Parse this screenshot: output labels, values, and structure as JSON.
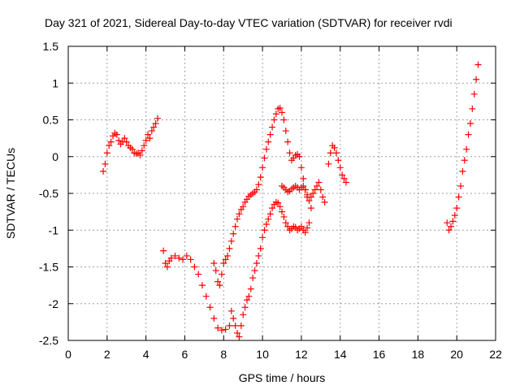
{
  "chart_data": {
    "type": "scatter",
    "title": "Day 321 of 2021, Sidereal Day-to-day VTEC variation (SDTVAR) for receiver rvdi",
    "xlabel": "GPS time / hours",
    "ylabel": "SDTVAR / TECUs",
    "xlim": [
      0,
      22
    ],
    "ylim": [
      -2.5,
      1.5
    ],
    "x_ticks": [
      "0",
      "2",
      "4",
      "6",
      "8",
      "10",
      "12",
      "14",
      "16",
      "18",
      "20",
      "22"
    ],
    "y_ticks": [
      "1.5",
      "1",
      "0.5",
      "0",
      "-0.5",
      "-1",
      "-1.5",
      "-2",
      "-2.5"
    ],
    "grid": true,
    "marker": "+",
    "color": "#ff0000",
    "series": [
      {
        "points": [
          [
            1.8,
            -0.2
          ],
          [
            1.9,
            -0.1
          ],
          [
            2.0,
            0.05
          ],
          [
            2.1,
            0.15
          ],
          [
            2.2,
            0.2
          ],
          [
            2.3,
            0.28
          ],
          [
            2.4,
            0.32
          ],
          [
            2.5,
            0.3
          ],
          [
            2.6,
            0.22
          ],
          [
            2.7,
            0.17
          ],
          [
            2.8,
            0.2
          ],
          [
            2.9,
            0.25
          ],
          [
            3.0,
            0.2
          ],
          [
            3.1,
            0.15
          ],
          [
            3.2,
            0.12
          ],
          [
            3.3,
            0.1
          ],
          [
            3.4,
            0.05
          ],
          [
            3.5,
            0.04
          ],
          [
            3.6,
            0.05
          ],
          [
            3.7,
            0.02
          ],
          [
            3.8,
            0.08
          ],
          [
            3.9,
            0.15
          ],
          [
            4.0,
            0.22
          ],
          [
            4.1,
            0.3
          ],
          [
            4.2,
            0.25
          ],
          [
            4.3,
            0.35
          ],
          [
            4.4,
            0.4
          ],
          [
            4.5,
            0.45
          ],
          [
            4.6,
            0.52
          ]
        ]
      },
      {
        "points": [
          [
            4.9,
            -1.28
          ],
          [
            5.0,
            -1.45
          ],
          [
            5.1,
            -1.5
          ],
          [
            5.2,
            -1.42
          ],
          [
            5.3,
            -1.38
          ],
          [
            5.5,
            -1.35
          ],
          [
            5.7,
            -1.38
          ],
          [
            5.9,
            -1.4
          ],
          [
            6.1,
            -1.35
          ],
          [
            6.3,
            -1.4
          ],
          [
            6.5,
            -1.5
          ],
          [
            6.7,
            -1.6
          ],
          [
            6.9,
            -1.75
          ],
          [
            7.1,
            -1.9
          ],
          [
            7.3,
            -2.05
          ],
          [
            7.5,
            -2.2
          ],
          [
            7.7,
            -2.33
          ],
          [
            7.9,
            -2.36
          ],
          [
            8.1,
            -2.35
          ],
          [
            8.3,
            -2.3
          ],
          [
            8.4,
            -2.1
          ],
          [
            8.5,
            -2.2
          ],
          [
            8.6,
            -2.3
          ],
          [
            8.7,
            -2.4
          ],
          [
            8.8,
            -2.45
          ],
          [
            8.9,
            -2.3
          ],
          [
            9.0,
            -2.15
          ],
          [
            9.1,
            -2.05
          ],
          [
            9.2,
            -1.95
          ],
          [
            9.3,
            -1.9
          ],
          [
            9.4,
            -1.8
          ],
          [
            9.5,
            -1.65
          ],
          [
            9.6,
            -1.55
          ],
          [
            9.7,
            -1.45
          ],
          [
            9.8,
            -1.35
          ],
          [
            9.9,
            -1.25
          ],
          [
            10.0,
            -1.1
          ],
          [
            10.1,
            -1.0
          ],
          [
            10.2,
            -0.92
          ],
          [
            10.3,
            -0.85
          ],
          [
            10.4,
            -0.78
          ],
          [
            10.5,
            -0.7
          ],
          [
            10.6,
            -0.65
          ],
          [
            10.7,
            -0.62
          ],
          [
            10.8,
            -0.63
          ],
          [
            10.9,
            -0.68
          ],
          [
            11.0,
            -0.75
          ],
          [
            11.1,
            -0.82
          ],
          [
            11.2,
            -0.9
          ],
          [
            11.3,
            -0.95
          ],
          [
            11.4,
            -1.0
          ],
          [
            11.5,
            -0.98
          ],
          [
            11.6,
            -0.95
          ],
          [
            11.7,
            -0.96
          ],
          [
            11.8,
            -1.0
          ],
          [
            11.9,
            -0.98
          ],
          [
            12.0,
            -0.95
          ],
          [
            12.1,
            -1.0
          ],
          [
            12.2,
            -1.03
          ],
          [
            12.3,
            -0.97
          ],
          [
            12.4,
            -0.9
          ],
          [
            12.5,
            -0.7
          ]
        ]
      },
      {
        "points": [
          [
            7.5,
            -1.45
          ],
          [
            7.6,
            -1.55
          ],
          [
            7.7,
            -1.7
          ],
          [
            7.8,
            -1.75
          ],
          [
            7.9,
            -1.6
          ],
          [
            8.0,
            -1.45
          ],
          [
            8.1,
            -1.4
          ],
          [
            8.2,
            -1.35
          ],
          [
            8.3,
            -1.25
          ],
          [
            8.4,
            -1.15
          ],
          [
            8.5,
            -1.05
          ],
          [
            8.6,
            -0.95
          ],
          [
            8.7,
            -0.85
          ],
          [
            8.8,
            -0.78
          ],
          [
            8.9,
            -0.72
          ],
          [
            9.0,
            -0.68
          ],
          [
            9.1,
            -0.62
          ],
          [
            9.2,
            -0.58
          ],
          [
            9.3,
            -0.54
          ],
          [
            9.4,
            -0.52
          ],
          [
            9.5,
            -0.5
          ],
          [
            9.6,
            -0.48
          ],
          [
            9.7,
            -0.45
          ],
          [
            9.8,
            -0.38
          ],
          [
            9.9,
            -0.28
          ],
          [
            10.0,
            -0.15
          ],
          [
            10.1,
            -0.02
          ],
          [
            10.2,
            0.1
          ],
          [
            10.3,
            0.2
          ],
          [
            10.4,
            0.3
          ],
          [
            10.5,
            0.4
          ],
          [
            10.6,
            0.5
          ],
          [
            10.7,
            0.58
          ],
          [
            10.8,
            0.65
          ],
          [
            10.9,
            0.66
          ],
          [
            11.0,
            0.6
          ],
          [
            11.1,
            0.5
          ],
          [
            11.2,
            0.35
          ],
          [
            11.3,
            0.2
          ],
          [
            11.4,
            0.05
          ],
          [
            11.5,
            -0.05
          ],
          [
            11.6,
            -0.02
          ],
          [
            11.7,
            0.02
          ],
          [
            11.8,
            0.03
          ],
          [
            11.9,
            0.0
          ],
          [
            12.0,
            -0.15
          ],
          [
            12.1,
            -0.3
          ],
          [
            12.2,
            -0.45
          ],
          [
            12.3,
            -0.55
          ],
          [
            12.4,
            -0.6
          ],
          [
            12.5,
            -0.55
          ],
          [
            12.6,
            -0.5
          ],
          [
            12.7,
            -0.45
          ],
          [
            12.8,
            -0.4
          ],
          [
            12.9,
            -0.35
          ],
          [
            13.0,
            -0.45
          ],
          [
            13.1,
            -0.55
          ],
          [
            13.2,
            -0.62
          ]
        ]
      },
      {
        "points": [
          [
            11.0,
            -0.4
          ],
          [
            11.1,
            -0.42
          ],
          [
            11.2,
            -0.45
          ],
          [
            11.3,
            -0.48
          ],
          [
            11.4,
            -0.47
          ],
          [
            11.5,
            -0.44
          ],
          [
            11.6,
            -0.42
          ],
          [
            11.7,
            -0.4
          ],
          [
            11.8,
            -0.42
          ],
          [
            11.9,
            -0.45
          ],
          [
            12.0,
            -0.42
          ],
          [
            12.1,
            -0.4
          ],
          [
            12.2,
            -0.45
          ],
          [
            12.3,
            -0.52
          ]
        ]
      },
      {
        "points": [
          [
            13.4,
            -0.1
          ],
          [
            13.5,
            0.05
          ],
          [
            13.6,
            0.15
          ],
          [
            13.7,
            0.12
          ],
          [
            13.8,
            0.05
          ],
          [
            13.9,
            -0.05
          ],
          [
            14.0,
            -0.15
          ],
          [
            14.1,
            -0.25
          ],
          [
            14.2,
            -0.3
          ],
          [
            14.3,
            -0.35
          ]
        ]
      },
      {
        "points": [
          [
            19.5,
            -0.9
          ],
          [
            19.6,
            -1.0
          ],
          [
            19.7,
            -0.95
          ],
          [
            19.8,
            -0.88
          ],
          [
            19.9,
            -0.8
          ],
          [
            20.0,
            -0.7
          ],
          [
            20.1,
            -0.55
          ],
          [
            20.2,
            -0.4
          ],
          [
            20.3,
            -0.2
          ],
          [
            20.4,
            -0.05
          ],
          [
            20.5,
            0.1
          ],
          [
            20.6,
            0.3
          ],
          [
            20.7,
            0.45
          ],
          [
            20.8,
            0.65
          ],
          [
            20.9,
            0.85
          ],
          [
            21.0,
            1.05
          ],
          [
            21.1,
            1.25
          ]
        ]
      }
    ]
  }
}
